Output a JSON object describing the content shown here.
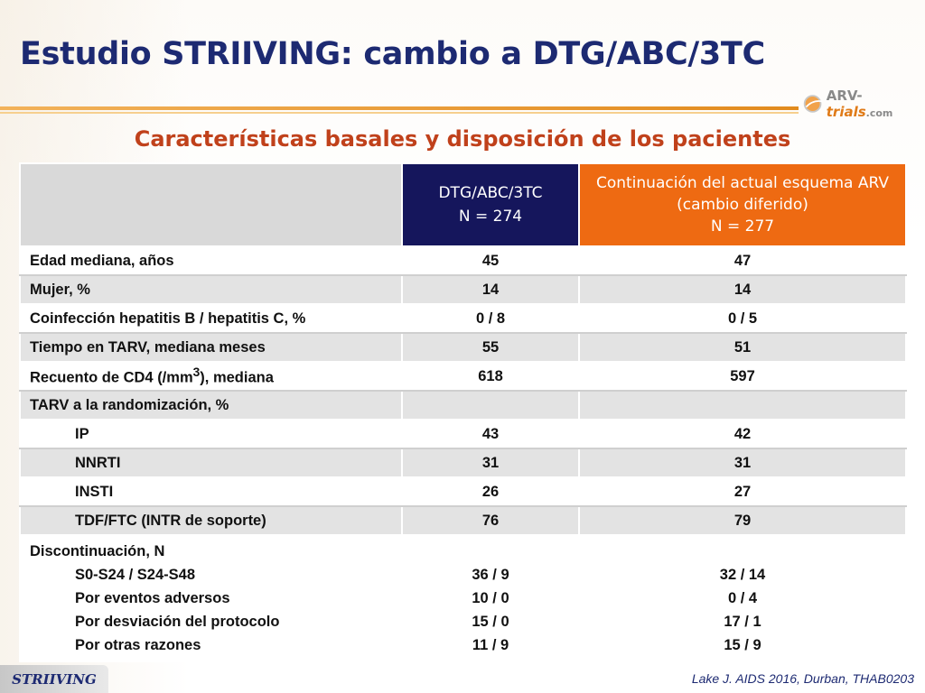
{
  "slide": {
    "title": "Estudio STRIIVING: cambio a DTG/ABC/3TC",
    "subtitle": "Características basales y disposición de los pacientes",
    "logo": {
      "arv": "ARV-",
      "trials": "trials",
      "com": ".com"
    },
    "footer_tag": "STRIIVING",
    "citation": "Lake J. AIDS 2016, Durban, THAB0203"
  },
  "table": {
    "col_headers": [
      {
        "line1": "DTG/ABC/3TC",
        "line2": "N = 274"
      },
      {
        "line1": "Continuación del actual esquema ARV (cambio diferido)",
        "line2": "N = 277"
      }
    ],
    "rows": [
      {
        "label": "Edad mediana, años",
        "dtg": "45",
        "cont": "47"
      },
      {
        "label": "Mujer, %",
        "dtg": "14",
        "cont": "14"
      },
      {
        "label": "Coinfección hepatitis B / hepatitis C, %",
        "dtg": "0 / 8",
        "cont": "0 / 5"
      },
      {
        "label": "Tiempo en TARV, mediana meses",
        "dtg": "55",
        "cont": "51"
      },
      {
        "label_pre": "Recuento de CD4 (/mm",
        "label_sup": "3",
        "label_post": "), mediana",
        "dtg": "618",
        "cont": "597"
      },
      {
        "label": "TARV a la randomización, %",
        "dtg": "",
        "cont": ""
      },
      {
        "label": "IP",
        "dtg": "43",
        "cont": "42"
      },
      {
        "label": "NNRTI",
        "dtg": "31",
        "cont": "31"
      },
      {
        "label": "INSTI",
        "dtg": "26",
        "cont": "27"
      },
      {
        "label": "TDF/FTC (INTR de soporte)",
        "dtg": "76",
        "cont": "79"
      }
    ],
    "discontinuation": {
      "label": "Discontinuación, N",
      "items": [
        {
          "label": "S0-S24 / S24-S48",
          "dtg": "36 / 9",
          "cont": "32 / 14"
        },
        {
          "label": "Por eventos adversos",
          "dtg": "10 / 0",
          "cont": "0 / 4"
        },
        {
          "label": "Por desviación del protocolo",
          "dtg": "15 / 0",
          "cont": "17 / 1"
        },
        {
          "label": "Por otras razones",
          "dtg": "11 / 9",
          "cont": "15 / 9"
        }
      ]
    }
  },
  "colors": {
    "title": "#1d2a72",
    "subtitle": "#c0411b",
    "header_dtg": "#15165c",
    "header_cont": "#ee6a12",
    "accent_rule": "#e28b1e"
  }
}
